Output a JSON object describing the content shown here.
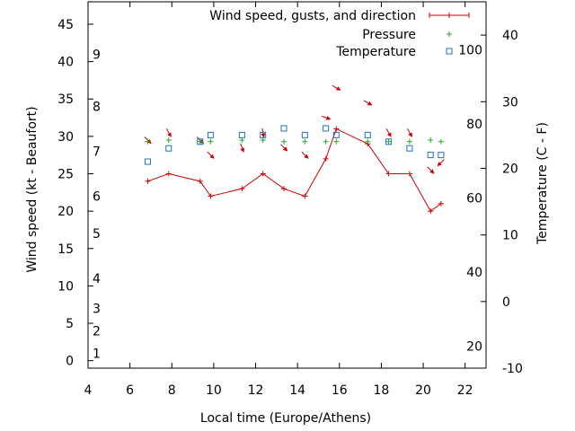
{
  "chart_data": {
    "type": "line",
    "x_axis": {
      "label": "Local time (Europe/Athens)",
      "range": [
        4,
        23
      ],
      "ticks": [
        4,
        6,
        8,
        10,
        12,
        14,
        16,
        18,
        20,
        22
      ]
    },
    "y_left": {
      "label": "Wind speed (kt - Beaufort)",
      "range": [
        -1,
        48
      ],
      "ticks": [
        0,
        5,
        10,
        15,
        20,
        25,
        30,
        35,
        40,
        45
      ]
    },
    "y_right": {
      "label": "Temperature (C - F)",
      "range": [
        -10,
        45
      ],
      "celsius_ticks": [
        -10,
        0,
        10,
        20,
        30,
        40
      ],
      "fahrenheit_ticks": [
        20,
        40,
        60,
        80,
        100
      ]
    },
    "beaufort_scale": [
      {
        "label": "1",
        "kt": 1
      },
      {
        "label": "2",
        "kt": 4
      },
      {
        "label": "3",
        "kt": 7
      },
      {
        "label": "4",
        "kt": 11
      },
      {
        "label": "5",
        "kt": 17
      },
      {
        "label": "6",
        "kt": 22
      },
      {
        "label": "7",
        "kt": 28
      },
      {
        "label": "8",
        "kt": 34
      },
      {
        "label": "9",
        "kt": 41
      }
    ],
    "legend": {
      "position": "top-right",
      "entries": [
        "Wind speed, gusts, and direction",
        "Pressure",
        "Temperature"
      ]
    },
    "series": [
      {
        "name": "Wind speed, gusts, and direction",
        "color": "#cc0000",
        "x": [
          6.85,
          7.85,
          9.35,
          9.85,
          11.35,
          12.35,
          13.35,
          14.35,
          15.35,
          15.85,
          17.35,
          18.35,
          19.35,
          20.35,
          20.85
        ],
        "y": [
          24,
          25,
          24,
          22,
          23,
          25,
          23,
          22,
          27,
          31,
          29,
          25,
          25,
          20,
          21
        ],
        "arrow_bearing_deg": [
          135,
          150,
          135,
          135,
          160,
          170,
          135,
          135,
          110,
          120,
          120,
          150,
          150,
          135,
          225
        ]
      },
      {
        "name": "Pressure",
        "color": "#22aa22",
        "x": [
          6.85,
          7.85,
          9.35,
          9.85,
          11.35,
          12.35,
          13.35,
          14.35,
          15.35,
          15.85,
          17.35,
          18.35,
          19.35,
          20.35,
          20.85
        ],
        "y": [
          29.3,
          29.5,
          29.3,
          29.3,
          29.5,
          29.5,
          29.3,
          29.3,
          29.3,
          29.3,
          29.3,
          29.3,
          29.3,
          29.5,
          29.3
        ]
      },
      {
        "name": "Temperature",
        "color": "#1f6fbf",
        "x": [
          6.85,
          7.85,
          9.35,
          9.85,
          11.35,
          12.35,
          13.35,
          14.35,
          15.35,
          15.85,
          17.35,
          18.35,
          19.35,
          20.35,
          20.85
        ],
        "y_celsius": [
          21,
          23,
          24,
          25,
          25,
          25,
          26,
          25,
          26,
          25,
          25,
          24,
          23,
          22,
          22
        ]
      }
    ]
  }
}
